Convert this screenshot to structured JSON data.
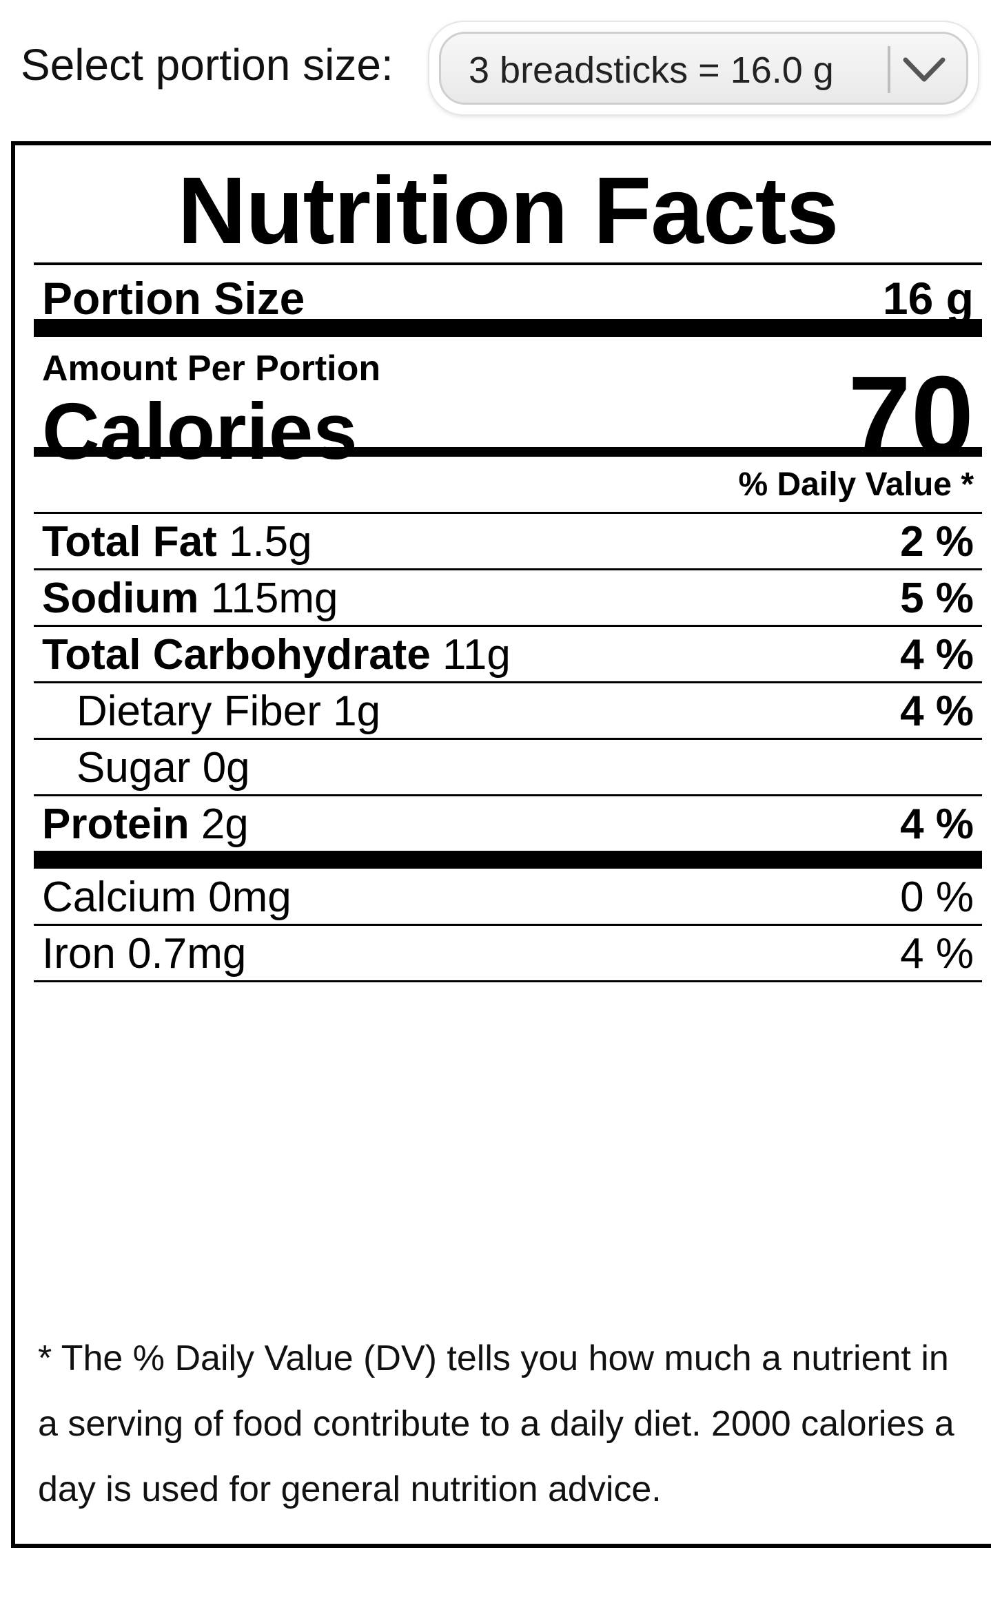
{
  "portion_selector": {
    "label": "Select portion size:",
    "selected": "3 breadsticks = 16.0 g"
  },
  "label": {
    "title": "Nutrition Facts",
    "portion_size_label": "Portion Size",
    "portion_size_value": "16 g",
    "amount_per_portion": "Amount Per Portion",
    "calories_label": "Calories",
    "calories_value": "70",
    "daily_value_header": "% Daily Value *",
    "nutrients": {
      "total_fat": {
        "name": "Total Fat",
        "amount": "1.5g",
        "dv": "2 %"
      },
      "sodium": {
        "name": "Sodium",
        "amount": "115mg",
        "dv": "5 %"
      },
      "total_carbohydrate": {
        "name": "Total Carbohydrate",
        "amount": "11g",
        "dv": "4 %"
      },
      "dietary_fiber": {
        "name": "Dietary Fiber",
        "amount": "1g",
        "dv": "4 %"
      },
      "sugar": {
        "name": "Sugar",
        "amount": "0g"
      },
      "protein": {
        "name": "Protein",
        "amount": "2g",
        "dv": "4 %"
      }
    },
    "minerals": {
      "calcium": {
        "name": "Calcium",
        "amount": "0mg",
        "dv": "0 %"
      },
      "iron": {
        "name": "Iron",
        "amount": "0.7mg",
        "dv": "4 %"
      }
    },
    "footnote": "* The % Daily Value (DV) tells you how much a nutrient in a serving of food contribute to a daily diet. 2000 calories a day is used for general nutrition advice."
  }
}
